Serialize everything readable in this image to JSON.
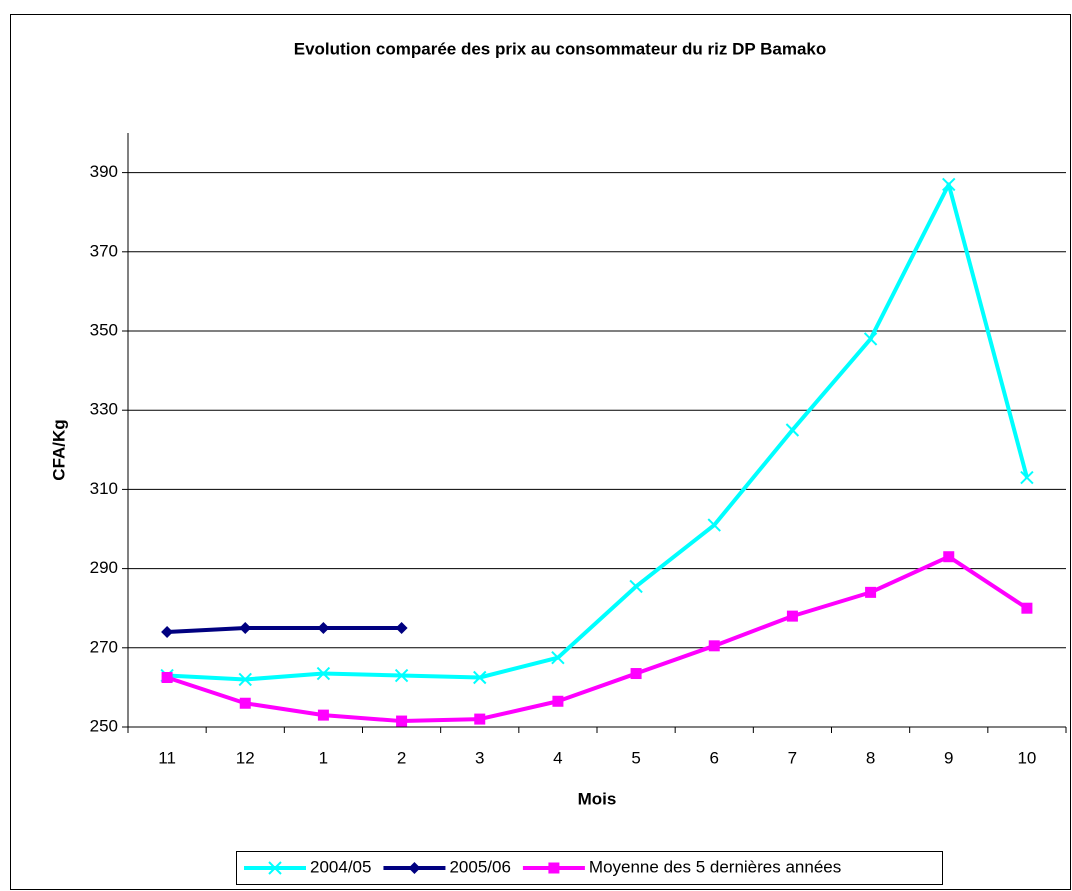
{
  "chart_data": {
    "type": "line",
    "title": "Evolution comparée des prix au consommateur du riz DP Bamako",
    "x_label": "Mois",
    "y_label": "CFA/Kg",
    "categories": [
      "11",
      "12",
      "1",
      "2",
      "3",
      "4",
      "5",
      "6",
      "7",
      "8",
      "9",
      "10"
    ],
    "series": [
      {
        "name": "2004/05",
        "color": "#00ffff",
        "marker": "x",
        "values": [
          263,
          262,
          263.5,
          263,
          262.5,
          267.5,
          285.5,
          301,
          325,
          348,
          387,
          313
        ]
      },
      {
        "name": "2005/06",
        "color": "#000080",
        "marker": "diamond",
        "values": [
          274,
          275,
          275,
          275,
          null,
          null,
          null,
          null,
          null,
          null,
          null,
          null
        ]
      },
      {
        "name": "Moyenne des 5 dernières années",
        "color": "#ff00ff",
        "marker": "square",
        "values": [
          262.5,
          256,
          253,
          251.5,
          252,
          256.5,
          263.5,
          270.5,
          278,
          284,
          293,
          280
        ]
      }
    ],
    "ylim": [
      250,
      400
    ],
    "yticks": [
      250,
      270,
      290,
      310,
      330,
      350,
      370,
      390
    ],
    "grid": true,
    "legend": "bottom"
  }
}
